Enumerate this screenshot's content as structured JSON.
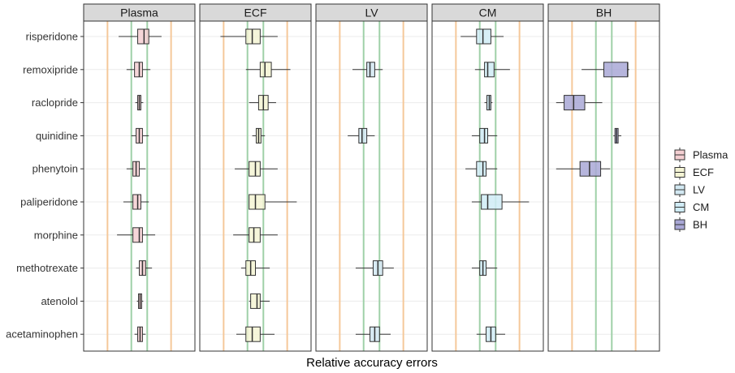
{
  "chart_data": {
    "type": "boxplot",
    "xlabel": "Relative accuracy errors",
    "ylabel": "",
    "panels": [
      "Plasma",
      "ECF",
      "LV",
      "CM",
      "BH"
    ],
    "compounds": [
      "risperidone",
      "remoxipride",
      "raclopride",
      "quinidine",
      "phenytoin",
      "paliperidone",
      "morphine",
      "methotrexate",
      "atenolol",
      "acetaminophen"
    ],
    "xlim": [
      -3.5,
      3.5
    ],
    "reference_lines": [
      {
        "value": -2,
        "color": "#f5c89a"
      },
      {
        "value": -0.5,
        "color": "#9fd0a8"
      },
      {
        "value": 0.5,
        "color": "#9fd0a8"
      },
      {
        "value": 2,
        "color": "#f5c89a"
      }
    ],
    "colors": {
      "Plasma": "#f4cfd2",
      "ECF": "#f4f4d4",
      "LV": "#d2e8f2",
      "CM": "#d0ecf6",
      "BH": "#a9a8d6"
    },
    "legend": {
      "position": "right",
      "entries": [
        "Plasma",
        "ECF",
        "LV",
        "CM",
        "BH"
      ]
    },
    "series": [
      {
        "name": "Plasma",
        "boxes": [
          {
            "compound": "risperidone",
            "whisker_low": -1.3,
            "q1": -0.1,
            "median": 0.3,
            "q3": 0.6,
            "whisker_high": 1.4
          },
          {
            "compound": "remoxipride",
            "whisker_low": -0.8,
            "q1": -0.3,
            "median": 0.0,
            "q3": 0.2,
            "whisker_high": 0.7
          },
          {
            "compound": "raclopride",
            "whisker_low": -0.25,
            "q1": -0.1,
            "median": 0.0,
            "q3": 0.1,
            "whisker_high": 0.25
          },
          {
            "compound": "quinidine",
            "whisker_low": -0.5,
            "q1": -0.2,
            "median": 0.0,
            "q3": 0.2,
            "whisker_high": 0.6
          },
          {
            "compound": "phenytoin",
            "whisker_low": -0.8,
            "q1": -0.4,
            "median": -0.2,
            "q3": 0.0,
            "whisker_high": 0.4
          },
          {
            "compound": "paliperidone",
            "whisker_low": -1.0,
            "q1": -0.4,
            "median": -0.1,
            "q3": 0.1,
            "whisker_high": 0.6
          },
          {
            "compound": "morphine",
            "whisker_low": -1.4,
            "q1": -0.4,
            "median": 0.0,
            "q3": 0.2,
            "whisker_high": 1.0
          },
          {
            "compound": "methotrexate",
            "whisker_low": -0.2,
            "q1": 0.0,
            "median": 0.2,
            "q3": 0.4,
            "whisker_high": 0.8
          },
          {
            "compound": "atenolol",
            "whisker_low": -0.15,
            "q1": -0.05,
            "median": 0.05,
            "q3": 0.15,
            "whisker_high": 0.25
          },
          {
            "compound": "acetaminophen",
            "whisker_low": -0.3,
            "q1": -0.1,
            "median": 0.05,
            "q3": 0.2,
            "whisker_high": 0.4
          }
        ]
      },
      {
        "name": "ECF",
        "boxes": [
          {
            "compound": "risperidone",
            "whisker_low": -2.2,
            "q1": -0.6,
            "median": -0.2,
            "q3": 0.3,
            "whisker_high": 1.4
          },
          {
            "compound": "remoxipride",
            "whisker_low": -0.6,
            "q1": 0.3,
            "median": 0.6,
            "q3": 1.0,
            "whisker_high": 2.2
          },
          {
            "compound": "raclopride",
            "whisker_low": -0.4,
            "q1": 0.2,
            "median": 0.5,
            "q3": 0.8,
            "whisker_high": 1.3
          },
          {
            "compound": "quinidine",
            "whisker_low": -0.2,
            "q1": 0.05,
            "median": 0.2,
            "q3": 0.35,
            "whisker_high": 0.6
          },
          {
            "compound": "phenytoin",
            "whisker_low": -1.3,
            "q1": -0.4,
            "median": 0.0,
            "q3": 0.3,
            "whisker_high": 1.4
          },
          {
            "compound": "paliperidone",
            "whisker_low": -0.4,
            "q1": -0.4,
            "median": 0.0,
            "q3": 0.6,
            "whisker_high": 2.6
          },
          {
            "compound": "morphine",
            "whisker_low": -1.4,
            "q1": -0.4,
            "median": -0.1,
            "q3": 0.3,
            "whisker_high": 1.4
          },
          {
            "compound": "methotrexate",
            "whisker_low": -0.9,
            "q1": -0.6,
            "median": -0.3,
            "q3": 0.0,
            "whisker_high": 0.9
          },
          {
            "compound": "atenolol",
            "whisker_low": -0.4,
            "q1": -0.3,
            "median": 0.1,
            "q3": 0.3,
            "whisker_high": 0.9
          },
          {
            "compound": "acetaminophen",
            "whisker_low": -1.2,
            "q1": -0.6,
            "median": -0.2,
            "q3": 0.3,
            "whisker_high": 1.2
          }
        ]
      },
      {
        "name": "LV",
        "boxes": [
          {
            "compound": "remoxipride",
            "whisker_low": -1.2,
            "q1": -0.3,
            "median": -0.1,
            "q3": 0.2,
            "whisker_high": 0.7
          },
          {
            "compound": "quinidine",
            "whisker_low": -1.5,
            "q1": -0.8,
            "median": -0.6,
            "q3": -0.3,
            "whisker_high": 0.2
          },
          {
            "compound": "methotrexate",
            "whisker_low": -1.0,
            "q1": 0.1,
            "median": 0.4,
            "q3": 0.7,
            "whisker_high": 1.4
          },
          {
            "compound": "acetaminophen",
            "whisker_low": -1.0,
            "q1": -0.1,
            "median": 0.2,
            "q3": 0.5,
            "whisker_high": 1.2
          }
        ]
      },
      {
        "name": "CM",
        "boxes": [
          {
            "compound": "risperidone",
            "whisker_low": -1.7,
            "q1": -0.7,
            "median": -0.3,
            "q3": 0.2,
            "whisker_high": 1.0
          },
          {
            "compound": "remoxipride",
            "whisker_low": -0.8,
            "q1": -0.2,
            "median": 0.0,
            "q3": 0.4,
            "whisker_high": 1.4
          },
          {
            "compound": "raclopride",
            "whisker_low": -0.2,
            "q1": -0.05,
            "median": 0.1,
            "q3": 0.2,
            "whisker_high": 0.3
          },
          {
            "compound": "quinidine",
            "whisker_low": -1.0,
            "q1": -0.5,
            "median": -0.2,
            "q3": 0.0,
            "whisker_high": 0.6
          },
          {
            "compound": "phenytoin",
            "whisker_low": -1.4,
            "q1": -0.7,
            "median": -0.3,
            "q3": -0.1,
            "whisker_high": 0.6
          },
          {
            "compound": "paliperidone",
            "whisker_low": -1.0,
            "q1": -0.4,
            "median": 0.0,
            "q3": 0.9,
            "whisker_high": 2.6
          },
          {
            "compound": "methotrexate",
            "whisker_low": -1.0,
            "q1": -0.5,
            "median": -0.3,
            "q3": -0.1,
            "whisker_high": 0.6
          },
          {
            "compound": "acetaminophen",
            "whisker_low": -0.7,
            "q1": -0.1,
            "median": 0.2,
            "q3": 0.5,
            "whisker_high": 1.1
          }
        ]
      },
      {
        "name": "BH",
        "boxes": [
          {
            "compound": "remoxipride",
            "whisker_low": -1.4,
            "q1": 0.0,
            "median": 1.5,
            "q3": 1.5,
            "whisker_high": 1.6
          },
          {
            "compound": "raclopride",
            "whisker_low": -3.0,
            "q1": -2.5,
            "median": -1.9,
            "q3": -1.2,
            "whisker_high": -0.1
          },
          {
            "compound": "quinidine",
            "whisker_low": 0.6,
            "q1": 0.7,
            "median": 0.8,
            "q3": 0.9,
            "whisker_high": 1.1
          },
          {
            "compound": "phenytoin",
            "whisker_low": -3.0,
            "q1": -1.5,
            "median": -0.9,
            "q3": -0.2,
            "whisker_high": 0.4
          }
        ]
      }
    ]
  }
}
